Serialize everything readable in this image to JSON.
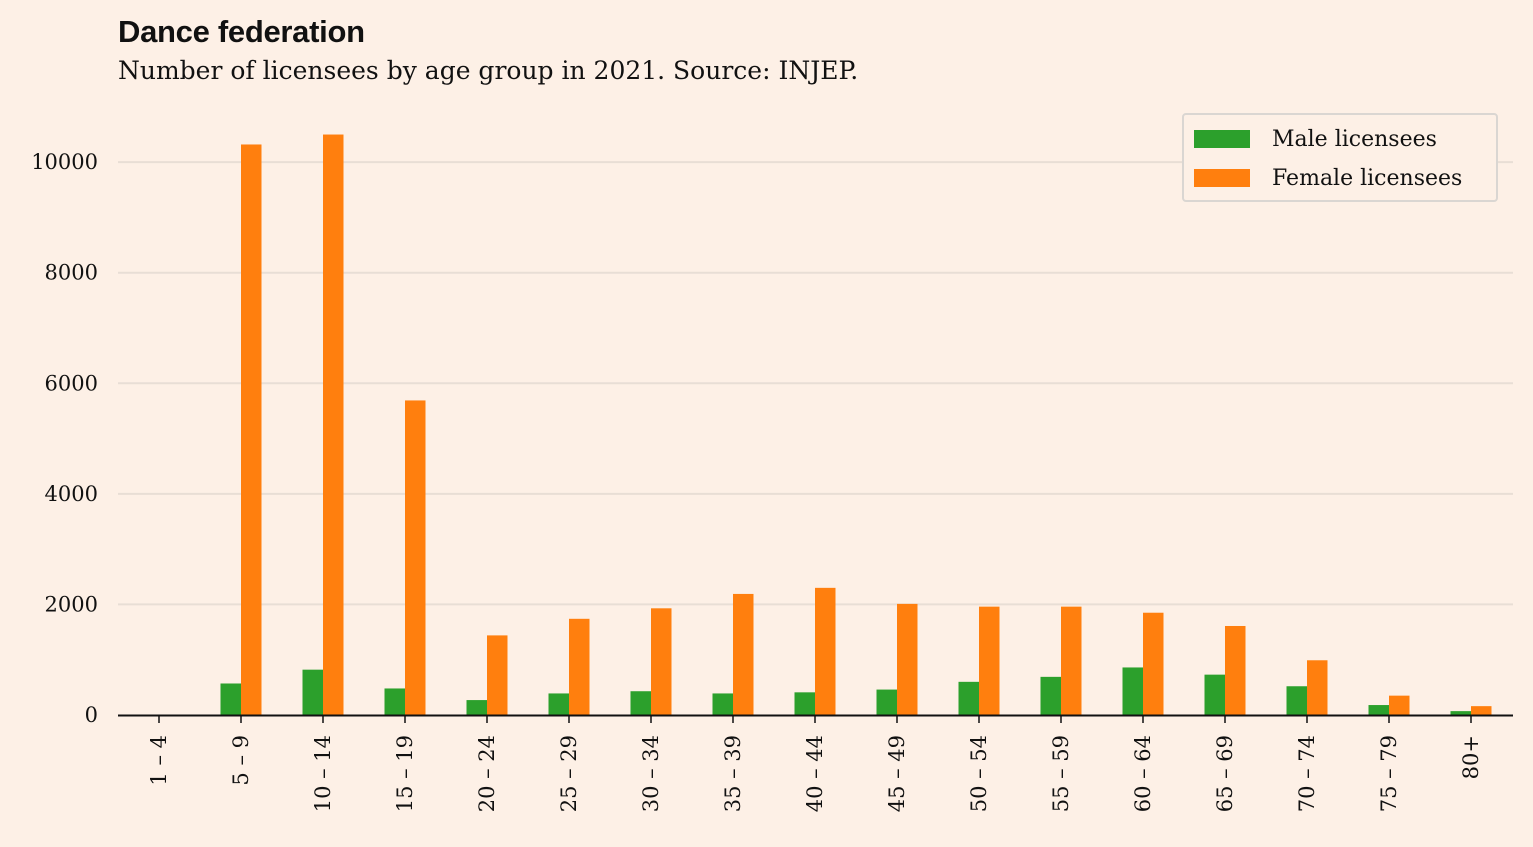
{
  "title": "Dance federation",
  "subtitle": "Number of licensees by age group in 2021. Source: INJEP.",
  "chart_data": {
    "type": "bar",
    "categories": [
      "1 – 4",
      "5 – 9",
      "10 – 14",
      "15 – 19",
      "20 – 24",
      "25 – 29",
      "30 – 34",
      "35 – 39",
      "40 – 44",
      "45 – 49",
      "50 – 54",
      "55 – 59",
      "60 – 64",
      "65 – 69",
      "70 – 74",
      "75 – 79",
      "80+"
    ],
    "series": [
      {
        "name": "Male licensees",
        "color": "#2ca02c",
        "values": [
          0,
          570,
          820,
          480,
          270,
          390,
          430,
          390,
          410,
          460,
          600,
          690,
          860,
          730,
          520,
          180,
          70
        ]
      },
      {
        "name": "Female licensees",
        "color": "#ff7f0e",
        "values": [
          0,
          10320,
          10500,
          5690,
          1440,
          1740,
          1930,
          2190,
          2300,
          2010,
          1960,
          1960,
          1850,
          1610,
          990,
          350,
          160
        ]
      }
    ],
    "yticks": [
      0,
      2000,
      4000,
      6000,
      8000,
      10000
    ],
    "ylim": [
      0,
      10600
    ],
    "grid": true,
    "legend_position": "top-right",
    "xlabel": "",
    "ylabel": ""
  }
}
